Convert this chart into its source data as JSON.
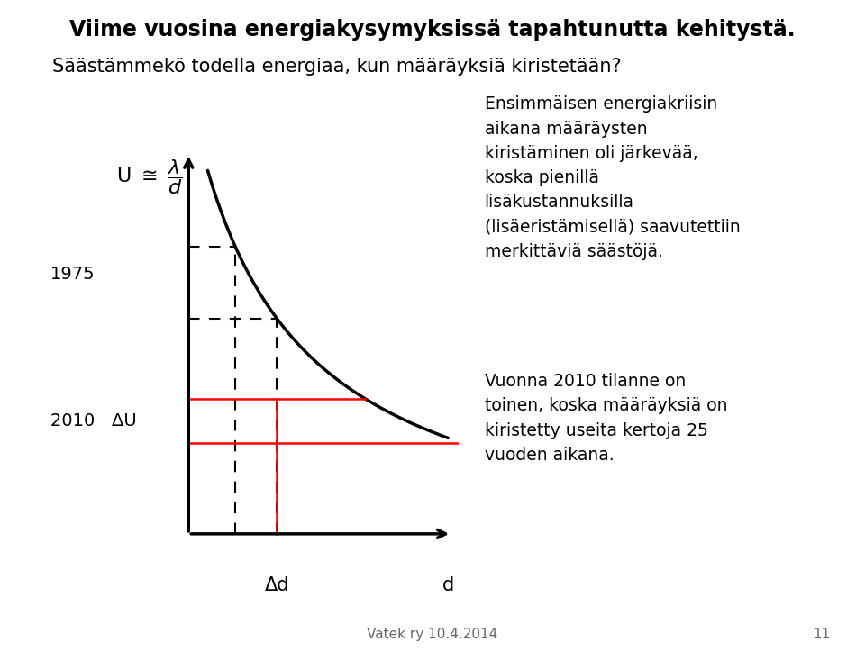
{
  "title": "Viime vuosina energiakysymyksissä tapahtunutta kehitystä.",
  "subtitle": "Säästämmekö todella energiaa, kun määräyksiä kiristetään?",
  "title_fontsize": 17,
  "subtitle_fontsize": 15,
  "bg_color": "#ffffff",
  "text_color": "#000000",
  "footer": "Vatek ry 10.4.2014",
  "page_number": "11",
  "text_right_top": "Ensimmäisen energiakriisin\naikana määräysten\nkiristäminen oli järkevää,\nkoska pienillä\nlisäkustannuksilla\n(lisäeristämisellä) saavutettiin\nmerkittäviä säästöjä.",
  "text_right_bottom": "Vuonna 2010 tilanne on\ntoinen, koska määräyksiä on\nkiristetty useita kertoja 25\nvuoden aikana."
}
